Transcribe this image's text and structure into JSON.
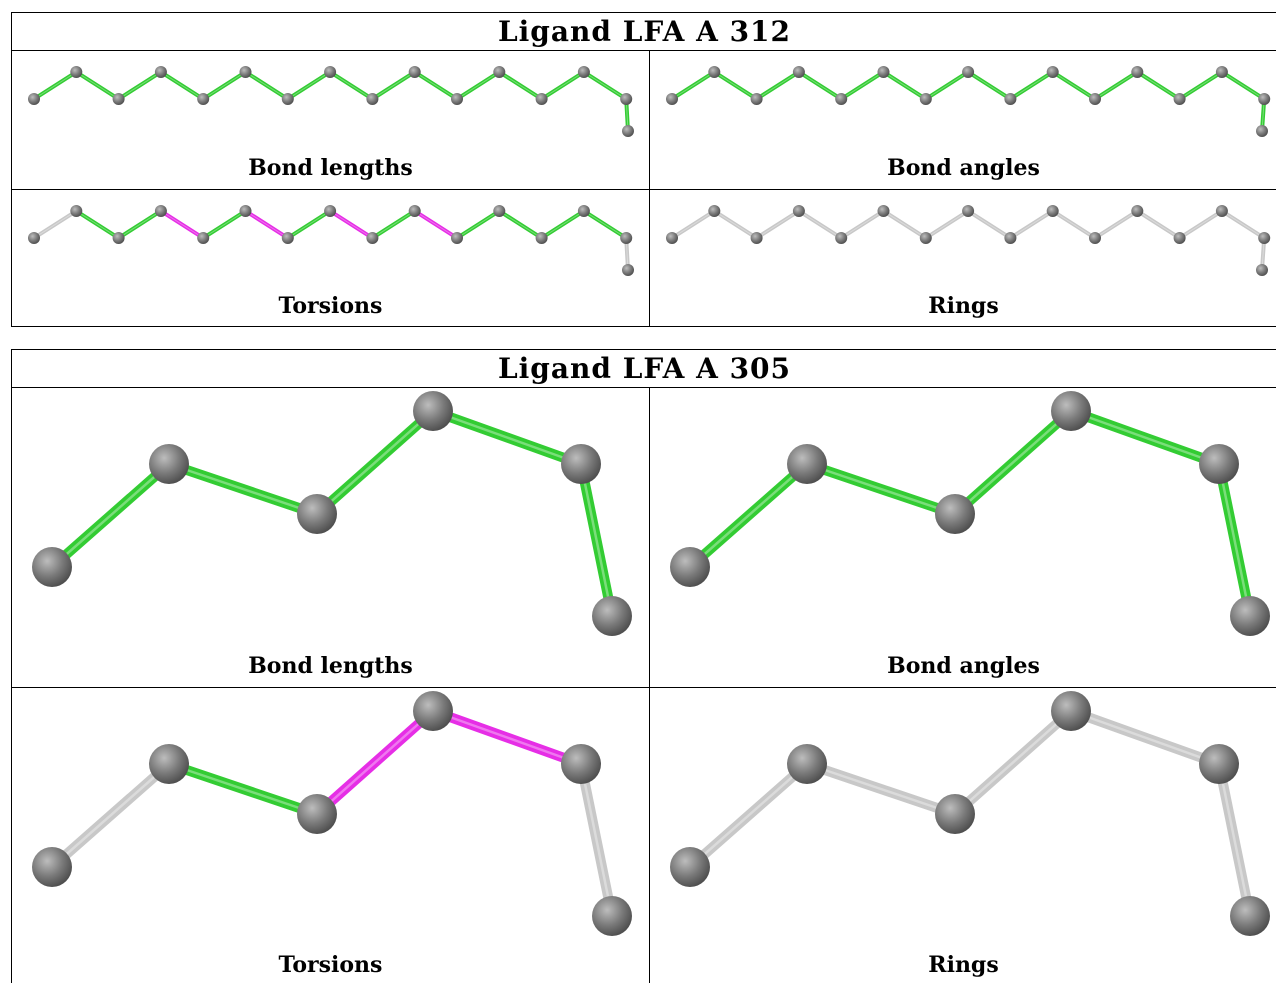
{
  "panels": [
    {
      "title": "Ligand LFA A 312",
      "cells": [
        {
          "label": "Bond lengths",
          "bond_colors": [
            "green",
            "green",
            "green",
            "green",
            "green",
            "green",
            "green",
            "green",
            "green",
            "green",
            "green",
            "green",
            "green",
            "green",
            "green"
          ]
        },
        {
          "label": "Bond angles",
          "bond_colors": [
            "green",
            "green",
            "green",
            "green",
            "green",
            "green",
            "green",
            "green",
            "green",
            "green",
            "green",
            "green",
            "green",
            "green",
            "green"
          ]
        },
        {
          "label": "Torsions",
          "bond_colors": [
            "grey",
            "green",
            "green",
            "magenta",
            "green",
            "magenta",
            "green",
            "magenta",
            "green",
            "magenta",
            "green",
            "green",
            "green",
            "green",
            "grey"
          ]
        },
        {
          "label": "Rings",
          "bond_colors": [
            "grey",
            "grey",
            "grey",
            "grey",
            "grey",
            "grey",
            "grey",
            "grey",
            "grey",
            "grey",
            "grey",
            "grey",
            "grey",
            "grey",
            "grey"
          ]
        }
      ]
    },
    {
      "title": "Ligand LFA A 305",
      "cells": [
        {
          "label": "Bond lengths",
          "bond_colors": [
            "green",
            "green",
            "green",
            "green",
            "green"
          ]
        },
        {
          "label": "Bond angles",
          "bond_colors": [
            "green",
            "green",
            "green",
            "green",
            "green"
          ]
        },
        {
          "label": "Torsions",
          "bond_colors": [
            "grey",
            "green",
            "magenta",
            "magenta",
            "grey"
          ]
        },
        {
          "label": "Rings",
          "bond_colors": [
            "grey",
            "grey",
            "grey",
            "grey",
            "grey"
          ]
        }
      ]
    }
  ],
  "colors": {
    "green": "#33cc33",
    "magenta": "#e62ee6",
    "grey": "#c8c8c8",
    "atom": "#7a7a7a",
    "border": "#000000"
  }
}
